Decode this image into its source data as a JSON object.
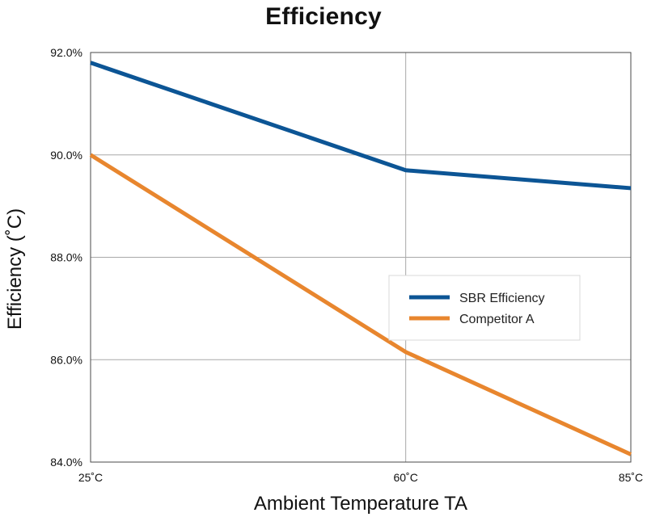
{
  "chart_data": {
    "type": "line",
    "title": "Efficiency",
    "xlabel": "Ambient Temperature TA",
    "ylabel": "Efficiency (˚C)",
    "categories": [
      "25˚C",
      "60˚C",
      "85˚C"
    ],
    "x": [
      25,
      60,
      85
    ],
    "xlim": [
      25,
      85
    ],
    "ylim": [
      84,
      92
    ],
    "y_ticks": [
      84,
      86,
      88,
      90,
      92
    ],
    "y_tick_labels": [
      "84.0%",
      "86.0%",
      "88.0%",
      "90.0%",
      "92.0%"
    ],
    "grid": true,
    "legend_position": "center-right",
    "series": [
      {
        "name": "SBR Efficiency",
        "values": [
          91.8,
          89.7,
          89.35
        ],
        "color": "#0c5595"
      },
      {
        "name": "Competitor A",
        "values": [
          90.0,
          86.15,
          84.15
        ],
        "color": "#e8862e"
      }
    ]
  }
}
